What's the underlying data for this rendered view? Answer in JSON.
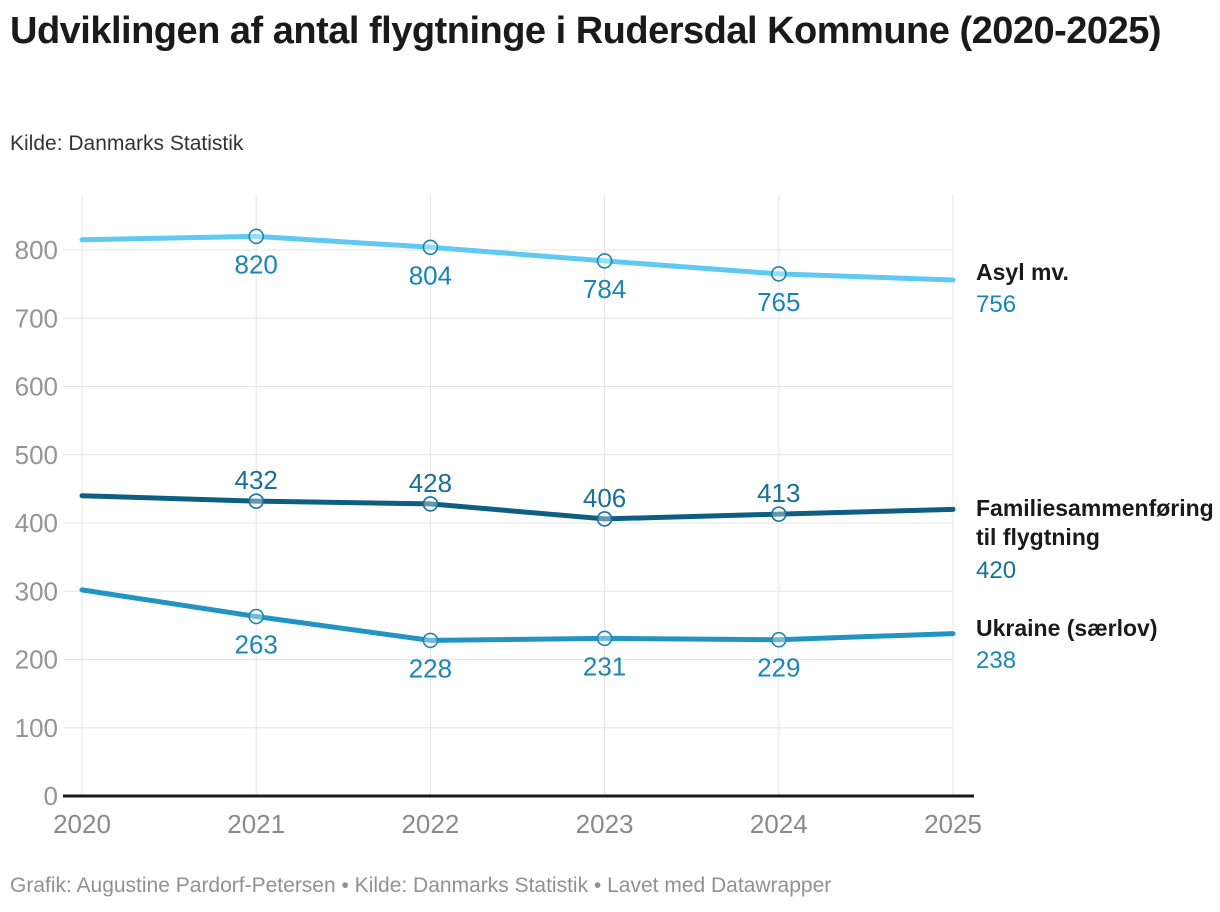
{
  "header": {
    "title": "Udviklingen af antal flygtninge i Rudersdal Kommune (2020-2025)",
    "subtitle": "Kilde: Danmarks Statistik"
  },
  "footer": {
    "text": "Grafik: Augustine Pardorf-Petersen • Kilde: Danmarks Statistik • Lavet med Datawrapper"
  },
  "chart_data": {
    "type": "line",
    "title": "Udviklingen af antal flygtninge i Rudersdal Kommune (2020-2025)",
    "source": "Kilde: Danmarks Statistik",
    "x": [
      "2020",
      "2021",
      "2022",
      "2023",
      "2024",
      "2025"
    ],
    "xlabel": "",
    "ylabel": "",
    "ylim": [
      0,
      880
    ],
    "yticks": [
      0,
      100,
      200,
      300,
      400,
      500,
      600,
      700,
      800
    ],
    "grid": true,
    "legend_position": "right-of-line-end",
    "colors": {
      "gridline": "#e4e4e4",
      "axis_line": "#1a1a1a",
      "y_tick_label": "#949494",
      "x_tick_label": "#8a8a8a"
    },
    "series": [
      {
        "name": "Asyl mv.",
        "values": [
          815,
          820,
          804,
          784,
          765,
          756
        ],
        "point_labels": [
          "",
          "820",
          "804",
          "784",
          "765",
          ""
        ],
        "end_label_value": "756",
        "color": "#5fc9f2",
        "label_color": "#1a85b0",
        "label_side": "below"
      },
      {
        "name": "Familiesammenføring til flygtning",
        "values": [
          440,
          432,
          428,
          406,
          413,
          420
        ],
        "point_labels": [
          "",
          "432",
          "428",
          "406",
          "413",
          ""
        ],
        "end_label_value": "420",
        "color": "#0d5e81",
        "label_color": "#186f9b",
        "label_side": "above"
      },
      {
        "name": "Ukraine (særlov)",
        "values": [
          302,
          263,
          228,
          231,
          229,
          238
        ],
        "point_labels": [
          "",
          "263",
          "228",
          "231",
          "229",
          ""
        ],
        "end_label_value": "238",
        "color": "#2294c2",
        "label_color": "#1b87b5",
        "label_side": "below"
      }
    ]
  }
}
